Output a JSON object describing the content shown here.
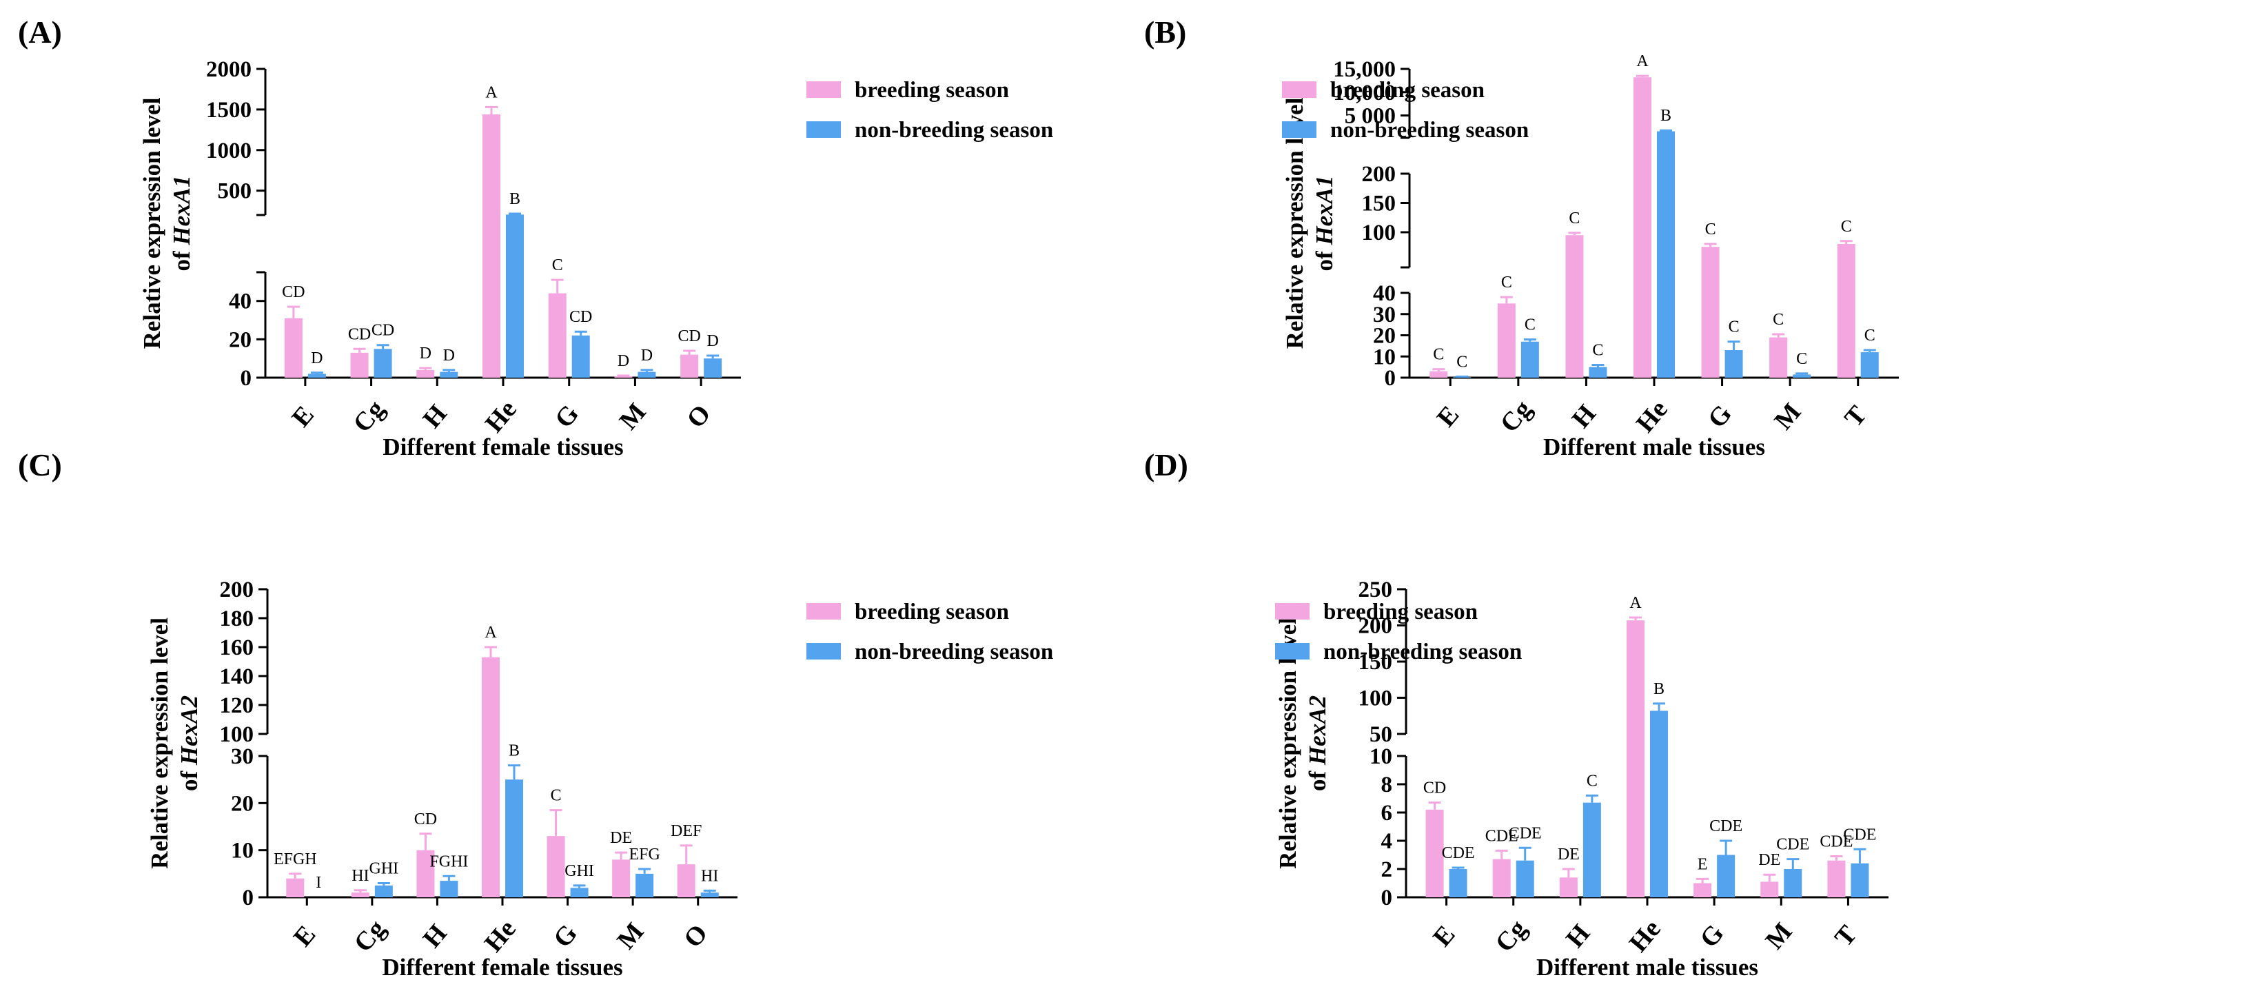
{
  "colors": {
    "breeding": "#f4a6e1",
    "non_breeding": "#54a3ee",
    "axis": "#000000"
  },
  "legend": {
    "breeding": "breeding season",
    "non_breeding": "non-breeding season"
  },
  "chart_data": [
    {
      "panel": "(A)",
      "type": "bar",
      "gene": "HexA1",
      "ylabel_line1": "Relative expression level",
      "ylabel_line2": "of",
      "xlabel": "Different female tissues",
      "categories": [
        "E",
        "Cg",
        "H",
        "He",
        "G",
        "M",
        "O"
      ],
      "series": [
        {
          "name": "breeding season",
          "values": [
            31,
            13,
            4,
            1440,
            44,
            0.7,
            12
          ],
          "errors": [
            6,
            2,
            1,
            90,
            7,
            0.4,
            2
          ],
          "letters": [
            "CD",
            "CD",
            "D",
            "A",
            "C",
            "D",
            "CD"
          ]
        },
        {
          "name": "non-breeding season",
          "values": [
            2,
            15,
            3,
            205,
            22,
            3,
            10
          ],
          "errors": [
            0.6,
            2,
            1,
            12,
            2,
            1,
            1.5
          ],
          "letters": [
            "D",
            "CD",
            "D",
            "B",
            "CD",
            "D",
            "D"
          ]
        }
      ],
      "y_segments": [
        {
          "range": [
            0,
            55
          ],
          "ticks": [
            0,
            20,
            40
          ]
        },
        {
          "range": [
            200,
            2000
          ],
          "ticks": [
            500,
            1000,
            1500,
            2000
          ]
        }
      ]
    },
    {
      "panel": "(B)",
      "type": "bar",
      "gene": "HexA1",
      "ylabel_line1": "Relative expression level",
      "ylabel_line2": "of",
      "xlabel": "Different male tissues",
      "categories": [
        "E",
        "Cg",
        "H",
        "He",
        "G",
        "M",
        "T"
      ],
      "series": [
        {
          "name": "breeding season",
          "values": [
            3,
            35,
            95,
            13200,
            75,
            19,
            80
          ],
          "errors": [
            1,
            3,
            4,
            300,
            5,
            1.5,
            5
          ],
          "letters": [
            "C",
            "C",
            "C",
            "A",
            "C",
            "C",
            "C"
          ]
        },
        {
          "name": "non-breeding season",
          "values": [
            0.3,
            17,
            5,
            1600,
            13,
            1.5,
            12
          ],
          "errors": [
            0.2,
            1,
            1,
            200,
            4,
            0.5,
            1
          ],
          "letters": [
            "C",
            "C",
            "C",
            "B",
            "C",
            "C",
            "C"
          ]
        }
      ],
      "y_segments": [
        {
          "range": [
            0,
            40
          ],
          "ticks": [
            0,
            10,
            20,
            30,
            40
          ]
        },
        {
          "range": [
            40,
            200
          ],
          "ticks": [
            100,
            150,
            200
          ]
        },
        {
          "range": [
            200,
            15000
          ],
          "ticks": [
            5000,
            10000,
            15000
          ],
          "tick_labels": [
            "5 000",
            "10,000",
            "15,000"
          ]
        }
      ]
    },
    {
      "panel": "(C)",
      "type": "bar",
      "gene": "HexA2",
      "ylabel_line1": "Relative expression level",
      "ylabel_line2": "of",
      "xlabel": "Different female tissues",
      "categories": [
        "E",
        "Cg",
        "H",
        "He",
        "G",
        "M",
        "O"
      ],
      "series": [
        {
          "name": "breeding season",
          "values": [
            4,
            1,
            10,
            153,
            13,
            8,
            7
          ],
          "errors": [
            1,
            0.5,
            3.5,
            7,
            5.5,
            1.5,
            4
          ],
          "letters": [
            "EFGH",
            "HI",
            "CD",
            "A",
            "C",
            "DE",
            "DEF"
          ]
        },
        {
          "name": "non-breeding season",
          "values": [
            0,
            2.5,
            3.5,
            25,
            2,
            5,
            1
          ],
          "errors": [
            0,
            0.5,
            1,
            3,
            0.5,
            1,
            0.4
          ],
          "letters": [
            "I",
            "GHI",
            "FGHI",
            "B",
            "GHI",
            "EFG",
            "HI"
          ]
        }
      ],
      "y_segments": [
        {
          "range": [
            0,
            30
          ],
          "ticks": [
            0,
            10,
            20,
            30
          ]
        },
        {
          "range": [
            100,
            200
          ],
          "ticks": [
            100,
            120,
            140,
            160,
            180,
            200
          ]
        }
      ]
    },
    {
      "panel": "(D)",
      "type": "bar",
      "gene": "HexA2",
      "ylabel_line1": "Relative expression level",
      "ylabel_line2": "of",
      "xlabel": "Different male tissues",
      "categories": [
        "E",
        "Cg",
        "H",
        "He",
        "G",
        "M",
        "T"
      ],
      "series": [
        {
          "name": "breeding season",
          "values": [
            6.2,
            2.7,
            1.4,
            207,
            1,
            1.1,
            2.6
          ],
          "errors": [
            0.5,
            0.6,
            0.6,
            4,
            0.3,
            0.5,
            0.3
          ],
          "letters": [
            "CD",
            "CDE",
            "DE",
            "A",
            "E",
            "DE",
            "CDE"
          ]
        },
        {
          "name": "non-breeding season",
          "values": [
            2,
            2.6,
            6.7,
            82,
            3,
            2,
            2.4
          ],
          "errors": [
            0.1,
            0.9,
            0.5,
            10,
            1,
            0.7,
            1
          ],
          "letters": [
            "CDE",
            "CDE",
            "C",
            "B",
            "CDE",
            "CDE",
            "CDE"
          ]
        }
      ],
      "y_segments": [
        {
          "range": [
            0,
            10
          ],
          "ticks": [
            0,
            2,
            4,
            6,
            8,
            10
          ]
        },
        {
          "range": [
            50,
            250
          ],
          "ticks": [
            50,
            100,
            150,
            200,
            250
          ]
        }
      ]
    }
  ]
}
